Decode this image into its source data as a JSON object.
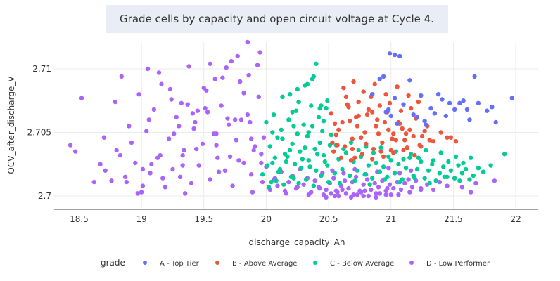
{
  "chart_data": {
    "type": "scatter",
    "title": "Grade cells by capacity and open circuit voltage at Cycle 4.",
    "xlabel": "discharge_capacity_Ah",
    "ylabel": "OCV_after_discharge_V",
    "xlim": [
      18.3,
      22.18
    ],
    "ylim": [
      2.69895,
      2.7121
    ],
    "xticks": [
      18.5,
      19,
      19.5,
      20,
      20.5,
      21,
      21.5,
      22
    ],
    "xtick_labels": [
      "18.5",
      "19",
      "19.5",
      "20",
      "20.5",
      "21",
      "21.5",
      "22"
    ],
    "yticks": [
      2.7,
      2.705,
      2.71
    ],
    "ytick_labels": [
      "2.7",
      "2.705",
      "2.71"
    ],
    "grid": true,
    "legend_title": "grade",
    "legend_position": "bottom",
    "series": [
      {
        "name": "A - Top Tier",
        "color": "#636efa",
        "x": [
          20.99,
          21.03,
          21.07,
          20.94,
          20.91,
          20.85,
          21.15,
          21.24,
          21.38,
          21.41,
          21.47,
          21.51,
          21.58,
          21.61,
          21.67,
          21.7,
          21.77,
          21.81,
          21.84,
          21.97,
          21.32,
          21.55,
          21.03,
          21.1,
          20.96,
          21.0,
          21.21,
          21.27,
          21.18,
          21.05,
          21.35,
          21.44,
          20.98,
          21.28,
          21.63
        ],
        "y": [
          2.7112,
          2.7111,
          2.711,
          2.7094,
          2.7092,
          2.708,
          2.7091,
          2.7079,
          2.708,
          2.7076,
          2.7073,
          2.7068,
          2.7075,
          2.7068,
          2.7094,
          2.7073,
          2.7067,
          2.707,
          2.7058,
          2.7077,
          2.7069,
          2.7073,
          2.7077,
          2.7072,
          2.7066,
          2.7063,
          2.7062,
          2.7059,
          2.7064,
          2.7057,
          2.7065,
          2.7063,
          2.7068,
          2.7056,
          2.706
        ]
      },
      {
        "name": "B - Above Average",
        "color": "#ef553b",
        "x": [
          20.52,
          20.56,
          20.61,
          20.65,
          20.69,
          20.74,
          20.79,
          20.84,
          20.88,
          20.93,
          20.97,
          21.02,
          21.06,
          21.11,
          21.15,
          21.2,
          21.25,
          21.29,
          21.34,
          21.4,
          21.45,
          21.52,
          20.54,
          20.58,
          20.63,
          20.67,
          20.71,
          20.76,
          20.81,
          20.86,
          20.9,
          20.95,
          21.0,
          21.04,
          21.09,
          21.13,
          21.18,
          21.23,
          21.27,
          20.53,
          20.62,
          20.7,
          20.78,
          20.87,
          20.96,
          21.05,
          21.14,
          21.22,
          20.6,
          20.68,
          20.77,
          20.85,
          20.94,
          21.02,
          21.1,
          21.19,
          20.66,
          20.74,
          20.82,
          20.91,
          20.99,
          21.08,
          21.16,
          20.57,
          20.73,
          20.89,
          21.01,
          21.12,
          21.31,
          21.48,
          20.64,
          20.8,
          20.92,
          21.07,
          21.24,
          20.72,
          20.85,
          20.98,
          20.55,
          20.69
        ],
        "y": [
          2.7065,
          2.7048,
          2.7058,
          2.7072,
          2.7045,
          2.7063,
          2.705,
          2.7078,
          2.7055,
          2.7042,
          2.7066,
          2.7049,
          2.7058,
          2.7044,
          2.7052,
          2.7061,
          2.7047,
          2.7055,
          2.7043,
          2.705,
          2.7046,
          2.7043,
          2.7035,
          2.7052,
          2.7039,
          2.7059,
          2.703,
          2.7046,
          2.7064,
          2.7037,
          2.7049,
          2.7058,
          2.7036,
          2.7044,
          2.7053,
          2.7038,
          2.7047,
          2.704,
          2.7051,
          2.7042,
          2.7085,
          2.709,
          2.7082,
          2.7088,
          2.708,
          2.7086,
          2.7079,
          2.7074,
          2.703,
          2.7028,
          2.7033,
          2.7029,
          2.7031,
          2.7034,
          2.7036,
          2.7032,
          2.707,
          2.7074,
          2.7068,
          2.7071,
          2.7073,
          2.7067,
          2.7069,
          2.704,
          2.7055,
          2.706,
          2.7045,
          2.7049,
          2.7044,
          2.7046,
          2.7078,
          2.7041,
          2.7035,
          2.7057,
          2.7039,
          2.7062,
          2.7066,
          2.7052,
          2.7057,
          2.7037
        ]
      },
      {
        "name": "C - Below Average",
        "color": "#00cc96",
        "x": [
          19.97,
          20.01,
          20.04,
          20.07,
          20.1,
          20.13,
          20.16,
          20.19,
          20.22,
          20.25,
          20.28,
          20.31,
          20.34,
          20.37,
          20.4,
          20.43,
          20.46,
          20.49,
          20.52,
          20.55,
          20.58,
          20.61,
          20.64,
          20.67,
          20.7,
          20.73,
          20.76,
          20.79,
          20.82,
          20.85,
          20.88,
          20.91,
          20.94,
          20.97,
          21.0,
          21.03,
          21.06,
          21.09,
          21.12,
          21.15,
          21.18,
          21.21,
          21.24,
          21.27,
          21.3,
          21.33,
          21.36,
          21.39,
          21.42,
          21.45,
          21.48,
          21.51,
          21.54,
          21.57,
          21.6,
          21.63,
          21.66,
          21.7,
          21.74,
          21.8,
          21.91,
          20.0,
          20.06,
          20.12,
          20.18,
          20.24,
          20.3,
          20.36,
          20.42,
          20.48,
          20.03,
          20.09,
          20.15,
          20.21,
          20.27,
          20.33,
          20.39,
          20.45,
          20.51,
          20.02,
          20.08,
          20.14,
          20.2,
          20.26,
          20.32,
          20.38,
          20.44,
          20.5,
          20.05,
          20.11,
          20.17,
          20.23,
          20.29,
          20.35,
          20.41,
          20.47,
          20.13,
          20.25,
          20.37,
          20.49,
          20.19,
          20.31,
          20.43,
          20.22,
          20.34,
          20.46,
          20.56,
          20.62,
          20.68,
          20.74,
          20.8,
          20.86,
          20.92,
          20.98,
          21.04,
          21.1,
          21.16,
          21.22,
          21.28,
          21.34,
          21.4,
          21.46,
          21.52,
          21.58,
          21.64,
          20.59,
          20.71,
          20.83,
          20.95,
          21.07,
          21.19,
          21.31,
          21.43,
          21.55,
          20.38,
          20.26,
          20.44,
          20.21,
          20.05,
          20.4,
          20.33
        ],
        "y": [
          2.7017,
          2.7024,
          2.7011,
          2.703,
          2.7019,
          2.7045,
          2.7027,
          2.7036,
          2.7014,
          2.7049,
          2.7022,
          2.7038,
          2.7028,
          2.7055,
          2.702,
          2.7042,
          2.7032,
          2.7024,
          2.7048,
          2.7018,
          2.7029,
          2.7021,
          2.7034,
          2.7016,
          2.7027,
          2.702,
          2.7031,
          2.7017,
          2.7024,
          2.7014,
          2.7026,
          2.7019,
          2.7023,
          2.7015,
          2.7028,
          2.7018,
          2.7025,
          2.7013,
          2.7022,
          2.703,
          2.7016,
          2.7021,
          2.7027,
          2.7014,
          2.702,
          2.7025,
          2.7012,
          2.7018,
          2.7023,
          2.7015,
          2.702,
          2.7014,
          2.7024,
          2.7018,
          2.7021,
          2.7013,
          2.7016,
          2.7022,
          2.7019,
          2.7024,
          2.7033,
          2.7058,
          2.7064,
          2.7052,
          2.706,
          2.7067,
          2.7056,
          2.7071,
          2.7062,
          2.7069,
          2.7039,
          2.7046,
          2.7033,
          2.7041,
          2.7035,
          2.7047,
          2.7037,
          2.7051,
          2.704,
          2.7007,
          2.7012,
          2.7009,
          2.7015,
          2.701,
          2.7013,
          2.7008,
          2.7016,
          2.7011,
          2.7026,
          2.7021,
          2.7031,
          2.7025,
          2.7029,
          2.7023,
          2.7033,
          2.7027,
          2.7078,
          2.7084,
          2.7092,
          2.7075,
          2.708,
          2.7087,
          2.7069,
          2.7055,
          2.705,
          2.7059,
          2.704,
          2.7037,
          2.7042,
          2.7036,
          2.7039,
          2.7034,
          2.7038,
          2.7031,
          2.7035,
          2.7029,
          2.7033,
          2.703,
          2.7036,
          2.7028,
          2.7034,
          2.7027,
          2.7031,
          2.7026,
          2.703,
          2.701,
          2.7012,
          2.7009,
          2.7013,
          2.7011,
          2.7014,
          2.701,
          2.7015,
          2.7012,
          2.7094,
          2.7074,
          2.7071,
          2.7066,
          2.705,
          2.7104,
          2.7088
        ]
      },
      {
        "name": "D - Low Performer",
        "color": "#ab63fa",
        "x": [
          18.43,
          18.47,
          18.52,
          18.67,
          18.7,
          18.76,
          18.79,
          18.83,
          18.84,
          18.88,
          18.92,
          18.95,
          18.98,
          19.01,
          19.04,
          19.07,
          19.1,
          19.13,
          19.16,
          19.19,
          19.22,
          19.25,
          19.28,
          19.31,
          19.34,
          19.37,
          19.4,
          19.43,
          19.46,
          19.49,
          19.52,
          19.55,
          19.58,
          19.61,
          19.64,
          19.67,
          19.7,
          19.73,
          19.76,
          19.79,
          19.82,
          19.85,
          19.88,
          19.91,
          19.94,
          19.97,
          20.0,
          20.03,
          20.06,
          20.09,
          20.12,
          20.15,
          20.18,
          20.21,
          20.24,
          20.27,
          20.3,
          20.33,
          20.36,
          20.39,
          20.42,
          20.45,
          20.48,
          20.51,
          20.54,
          20.57,
          20.6,
          20.63,
          20.66,
          20.69,
          20.72,
          20.75,
          20.78,
          20.81,
          20.84,
          20.87,
          20.9,
          20.93,
          20.96,
          20.99,
          21.02,
          21.05,
          21.08,
          21.11,
          21.14,
          21.17,
          21.2,
          21.24,
          21.29,
          21.34,
          21.39,
          21.45,
          21.51,
          21.57,
          21.64,
          21.68,
          21.83,
          18.62,
          18.71,
          18.8,
          18.9,
          19.0,
          19.08,
          19.17,
          19.26,
          19.35,
          19.44,
          19.53,
          19.62,
          19.71,
          19.8,
          19.89,
          19.98,
          20.07,
          20.16,
          20.25,
          20.34,
          20.43,
          20.52,
          20.61,
          20.7,
          20.79,
          20.88,
          20.97,
          21.06,
          21.15,
          21.24,
          18.97,
          19.06,
          19.15,
          19.24,
          19.33,
          19.42,
          19.51,
          19.6,
          19.69,
          19.78,
          19.87,
          19.96,
          19.05,
          19.14,
          19.23,
          19.32,
          19.41,
          19.5,
          19.59,
          19.68,
          19.77,
          19.86,
          19.95,
          20.44,
          20.53,
          20.62,
          20.71,
          20.8,
          20.89,
          20.98,
          21.07,
          21.16,
          20.46,
          20.55,
          20.64,
          20.73,
          20.82,
          20.91,
          21.0,
          20.48,
          20.58,
          20.68,
          20.78,
          20.88,
          20.56,
          20.76,
          20.96,
          19.85,
          19.72,
          19.93,
          19.38,
          19.65,
          19.55,
          19.82,
          18.87,
          19.01,
          19.3,
          19.45,
          19.6,
          19.75,
          19.9,
          19.33,
          19.88,
          19.96
        ],
        "y": [
          2.704,
          2.7035,
          2.7077,
          2.7025,
          2.7046,
          2.7012,
          2.7074,
          2.7032,
          2.7094,
          2.7011,
          2.7042,
          2.7026,
          2.708,
          2.7008,
          2.7051,
          2.7018,
          2.7068,
          2.703,
          2.7088,
          2.7007,
          2.7045,
          2.7021,
          2.7062,
          2.7015,
          2.7036,
          2.7072,
          2.701,
          2.7058,
          2.7024,
          2.7041,
          2.7083,
          2.7013,
          2.7049,
          2.703,
          2.7071,
          2.702,
          2.7056,
          2.7008,
          2.7044,
          2.709,
          2.7026,
          2.7064,
          2.7017,
          2.7039,
          2.7078,
          2.7011,
          2.7023,
          2.7005,
          2.7013,
          2.7008,
          2.7019,
          2.7004,
          2.7011,
          2.7016,
          2.7006,
          2.7021,
          2.7009,
          2.7014,
          2.7003,
          2.7012,
          2.7007,
          2.7018,
          2.7005,
          2.701,
          2.7014,
          2.7003,
          2.7008,
          2.7012,
          2.7006,
          2.7011,
          2.7015,
          2.7004,
          2.7009,
          2.7013,
          2.7005,
          2.701,
          2.7007,
          2.7012,
          2.7004,
          2.7009,
          2.7006,
          2.7011,
          2.7005,
          2.701,
          2.7013,
          2.7007,
          2.7012,
          2.7006,
          2.7009,
          2.7005,
          2.7011,
          2.7008,
          2.7014,
          2.7007,
          2.7003,
          2.701,
          2.7012,
          2.7011,
          2.702,
          2.7036,
          2.7055,
          2.7003,
          2.7025,
          2.7014,
          2.7049,
          2.7002,
          2.7037,
          2.7066,
          2.7019,
          2.7031,
          2.706,
          2.7003,
          2.7046,
          2.7014,
          2.7002,
          2.7007,
          2.7001,
          2.7006,
          2.7002,
          2.7005,
          2.7001,
          2.7004,
          2.7002,
          2.7006,
          2.7001,
          2.7003,
          2.7005,
          2.7002,
          2.706,
          2.7032,
          2.7076,
          2.7024,
          2.7053,
          2.7069,
          2.704,
          2.7061,
          2.7028,
          2.7058,
          2.7033,
          2.71,
          2.7097,
          2.7084,
          2.7073,
          2.7065,
          2.7085,
          2.7092,
          2.7101,
          2.711,
          2.7095,
          2.7113,
          2.7016,
          2.702,
          2.7018,
          2.7021,
          2.7017,
          2.7019,
          2.7022,
          2.7018,
          2.702,
          2.7001,
          2.7,
          2.7002,
          2.7001,
          2.7,
          2.7002,
          2.7001,
          2.6999,
          2.7,
          2.6999,
          2.7,
          2.6999,
          2.7004,
          2.7003,
          2.7001,
          2.7121,
          2.7106,
          2.7103,
          2.7102,
          2.7093,
          2.7104,
          2.7081,
          2.7015,
          2.7021,
          2.7055,
          2.7067,
          2.7049,
          2.706,
          2.7036,
          2.7032,
          2.7045,
          2.7026
        ]
      }
    ]
  }
}
